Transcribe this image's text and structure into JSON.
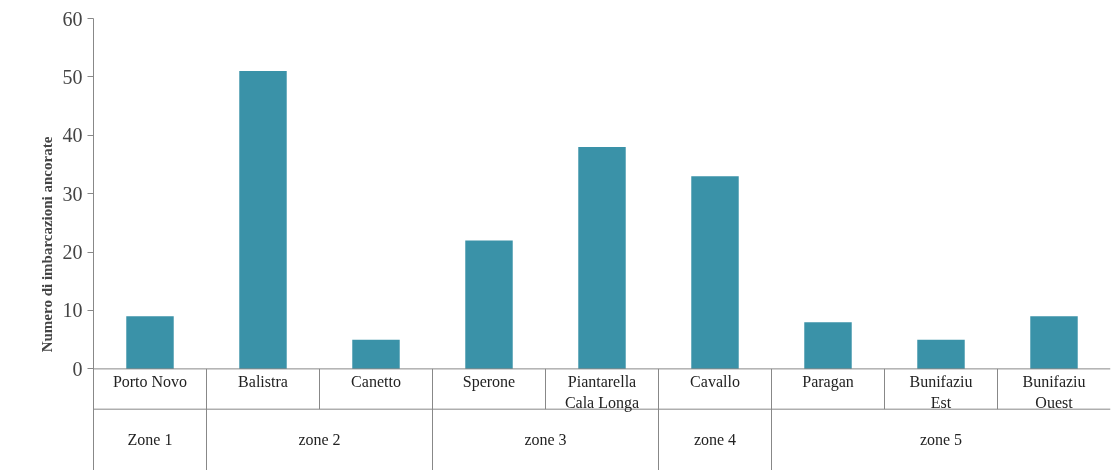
{
  "chart_data": {
    "type": "bar",
    "ylabel": "Numero di imbarcazioni ancorate",
    "categories": [
      "Porto Novo",
      "Balistra",
      "Canetto",
      "Sperone",
      "Piantarella\nCala Longa",
      "Cavallo",
      "Paragan",
      "Bunifaziu\nEst",
      "Bunifaziu\nOuest"
    ],
    "values": [
      9,
      51,
      5,
      22,
      38,
      33,
      8,
      5,
      9
    ],
    "color": "#3a92a8",
    "ylim": [
      0,
      60
    ],
    "yticks": [
      0,
      10,
      20,
      30,
      40,
      50,
      60
    ],
    "grid": false,
    "annotations": [
      "Zone 1",
      "zone 2",
      "zone 3",
      "zone 4",
      "zone 5"
    ]
  }
}
